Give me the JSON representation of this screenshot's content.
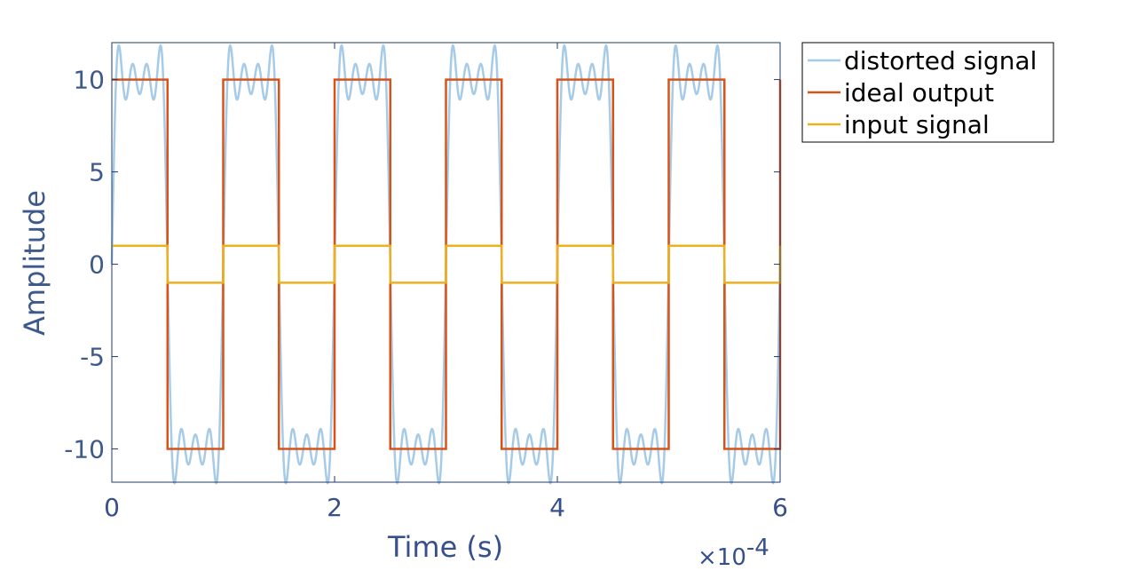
{
  "chart_data": {
    "type": "line",
    "xlabel": "Time (s)",
    "ylabel": "Amplitude",
    "x_multiplier_base": "×10",
    "x_multiplier_exp": "-4",
    "xlim": [
      0,
      6
    ],
    "ylim": [
      -11.8,
      12
    ],
    "xticks": [
      0,
      2,
      4,
      6
    ],
    "xtick_labels": [
      "0",
      "2",
      "4",
      "6"
    ],
    "yticks": [
      10,
      5,
      0,
      -5,
      -10
    ],
    "ytick_labels": [
      "10",
      "5",
      "0",
      "-5",
      "-10"
    ],
    "grid": false,
    "legend_position": "outside-top-right",
    "period": 1,
    "cycles": 6,
    "series": [
      {
        "name": "distorted signal",
        "color": "#a6cbe8",
        "amplitude": 10,
        "harmonics": [
          1,
          3,
          5,
          7
        ]
      },
      {
        "name": "ideal output",
        "color": "#d95319",
        "amplitude": 10,
        "shape": "square"
      },
      {
        "name": "input signal",
        "color": "#edb120",
        "amplitude": 1,
        "shape": "square"
      }
    ],
    "colors": {
      "axis": "#3e5a8a",
      "xlabel": "#364f8d",
      "border": "#1f3a6e"
    }
  }
}
